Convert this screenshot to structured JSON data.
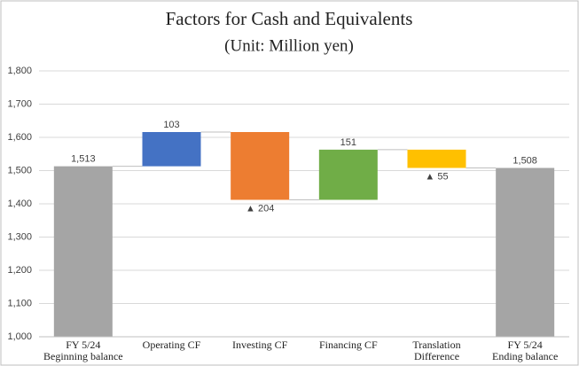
{
  "chart_data": {
    "type": "waterfall",
    "title": "Factors for Cash and Equivalents",
    "subtitle": "(Unit: Million yen)",
    "categories": [
      "FY 5/24\nBeginning balance",
      "Operating CF",
      "Investing CF",
      "Financing CF",
      "Translation\nDifference",
      "FY 5/24\nEnding balance"
    ],
    "values": [
      1513,
      103,
      -204,
      151,
      -55,
      1508
    ],
    "value_labels": [
      "1,513",
      "103",
      "▲ 204",
      "151",
      "▲ 55",
      "1,508"
    ],
    "measures": [
      "total",
      "relative",
      "relative",
      "relative",
      "relative",
      "total"
    ],
    "colors": [
      "#a5a5a5",
      "#4472c4",
      "#ed7d31",
      "#70ad47",
      "#ffc000",
      "#a5a5a5"
    ],
    "ylim": [
      1000,
      1800
    ],
    "yticks": [
      {
        "value": 1000,
        "label": "1,000"
      },
      {
        "value": 1100,
        "label": "1,100"
      },
      {
        "value": 1200,
        "label": "1,200"
      },
      {
        "value": 1300,
        "label": "1,300"
      },
      {
        "value": 1400,
        "label": "1,400"
      },
      {
        "value": 1500,
        "label": "1,500"
      },
      {
        "value": 1600,
        "label": "1,600"
      },
      {
        "value": 1700,
        "label": "1,700"
      },
      {
        "value": 1800,
        "label": "1,800"
      }
    ],
    "grid": true
  }
}
